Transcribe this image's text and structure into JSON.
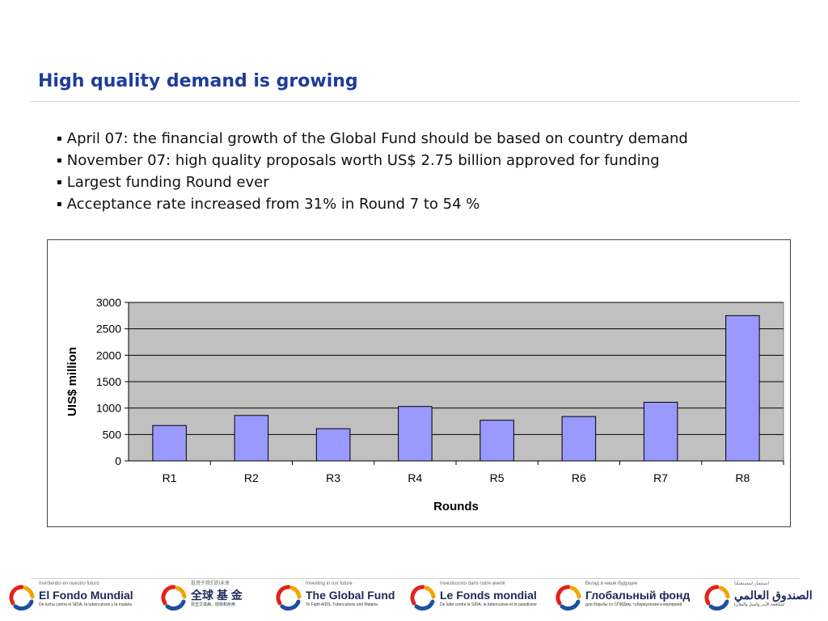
{
  "slide": {
    "title": "High quality demand is growing",
    "bullets": [
      "April 07: the financial growth of the Global Fund should be based on country demand",
      "November 07: high quality proposals worth US$ 2.75 billion approved for funding",
      "Largest funding Round ever",
      "Acceptance rate increased from 31% in Round 7 to 54 %"
    ],
    "bullet_glyph": "▪"
  },
  "chart_data": {
    "type": "bar",
    "categories": [
      "R1",
      "R2",
      "R3",
      "R4",
      "R5",
      "R6",
      "R7",
      "R8"
    ],
    "values": [
      670,
      860,
      610,
      1030,
      770,
      840,
      1110,
      2750
    ],
    "xlabel": "Rounds",
    "ylabel": "UIS$ million",
    "ylim": [
      0,
      3000
    ],
    "yticks": [
      0,
      500,
      1000,
      1500,
      2000,
      2500,
      3000
    ],
    "grid": true,
    "bar_color": "#9999ff",
    "plot_bg": "#c0c0c0"
  },
  "footer": {
    "logos": [
      {
        "small": "Invirtiendo en nuestro futuro",
        "main": "El Fondo Mundial",
        "sub": "De lucha contra el SIDA, la tuberculosis y la malaria"
      },
      {
        "small": "投资于我们的未来",
        "main": "全球 基 金",
        "sub": "抗击艾滋病、结核和疟疾"
      },
      {
        "small": "Investing in our future",
        "main": "The Global Fund",
        "sub": "To Fight AIDS, Tuberculosis and Malaria"
      },
      {
        "small": "Investissons dans notre avenir",
        "main": "Le Fonds mondial",
        "sub": "De lutte contre le SIDA, la tuberculose et le paludisme"
      },
      {
        "small": "Вклад в наше будущее",
        "main": "Глобальный фонд",
        "sub": "для борьбы со СПИДом, туберкулезом и малярией"
      },
      {
        "small": "استثمار لمستقبلنا",
        "main": "الصندوق العالمي",
        "sub": "لمكافحة الأيدز والسل والملاريا"
      }
    ]
  }
}
